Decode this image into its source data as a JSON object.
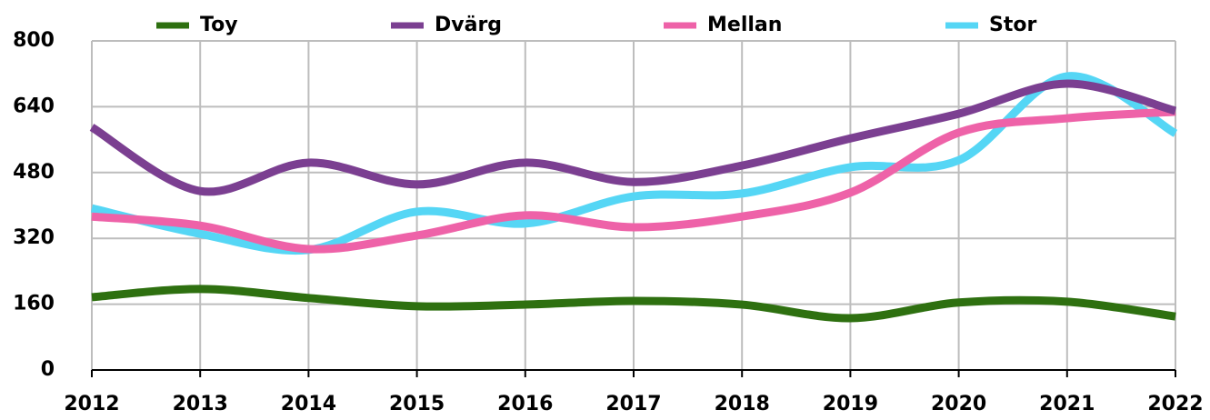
{
  "chart_data": {
    "type": "line",
    "categories": [
      "2012",
      "2013",
      "2014",
      "2015",
      "2016",
      "2017",
      "2018",
      "2019",
      "2020",
      "2021",
      "2022"
    ],
    "series": [
      {
        "name": "Toy",
        "color": "#2e7010",
        "values": [
          177,
          197,
          175,
          155,
          159,
          168,
          159,
          126,
          164,
          166,
          130
        ]
      },
      {
        "name": "Dvärg",
        "color": "#7b3f91",
        "values": [
          590,
          435,
          504,
          451,
          504,
          457,
          497,
          563,
          623,
          696,
          630
        ]
      },
      {
        "name": "Mellan",
        "color": "#ee62a8",
        "values": [
          373,
          351,
          294,
          327,
          376,
          347,
          373,
          431,
          577,
          612,
          628
        ]
      },
      {
        "name": "Stor",
        "color": "#55d6f5",
        "values": [
          393,
          331,
          292,
          385,
          356,
          422,
          429,
          493,
          510,
          714,
          575
        ]
      }
    ],
    "ylim": [
      0,
      800
    ],
    "yticks": [
      0,
      160,
      320,
      480,
      640,
      800
    ],
    "grid": true,
    "legend": "top",
    "smooth": true
  }
}
